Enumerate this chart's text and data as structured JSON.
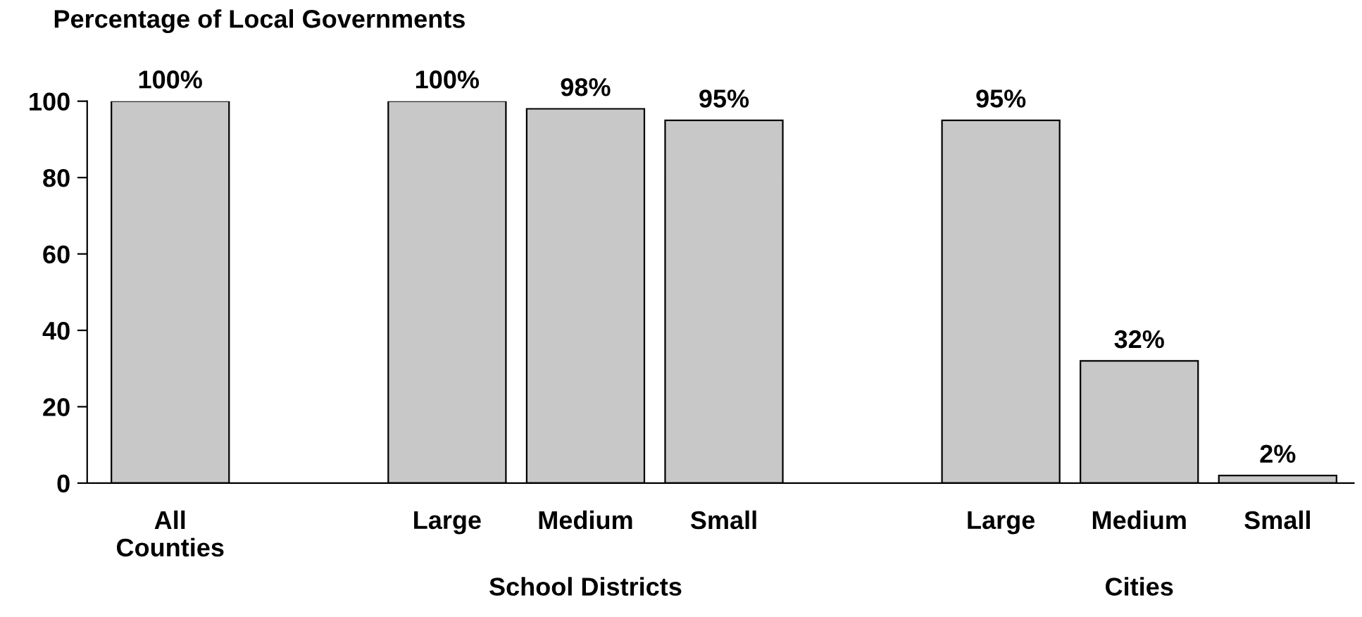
{
  "chart_data": {
    "type": "bar",
    "ylabel": "Percentage of Local Governments",
    "categories": [
      "All\nCounties",
      null,
      "Large",
      "Medium",
      "Small",
      null,
      "Large",
      "Medium",
      "Small"
    ],
    "values": [
      100,
      null,
      100,
      98,
      95,
      null,
      95,
      32,
      2
    ],
    "value_labels": [
      "100%",
      null,
      "100%",
      "98%",
      "95%",
      null,
      "95%",
      "32%",
      "2%"
    ],
    "color": "#c8c8c8",
    "annotations": [
      "School Districts",
      "Cities"
    ],
    "ylim": [
      0,
      100
    ],
    "yticks": [
      0,
      20,
      40,
      60,
      80,
      100
    ],
    "grid": false,
    "legend": false
  }
}
